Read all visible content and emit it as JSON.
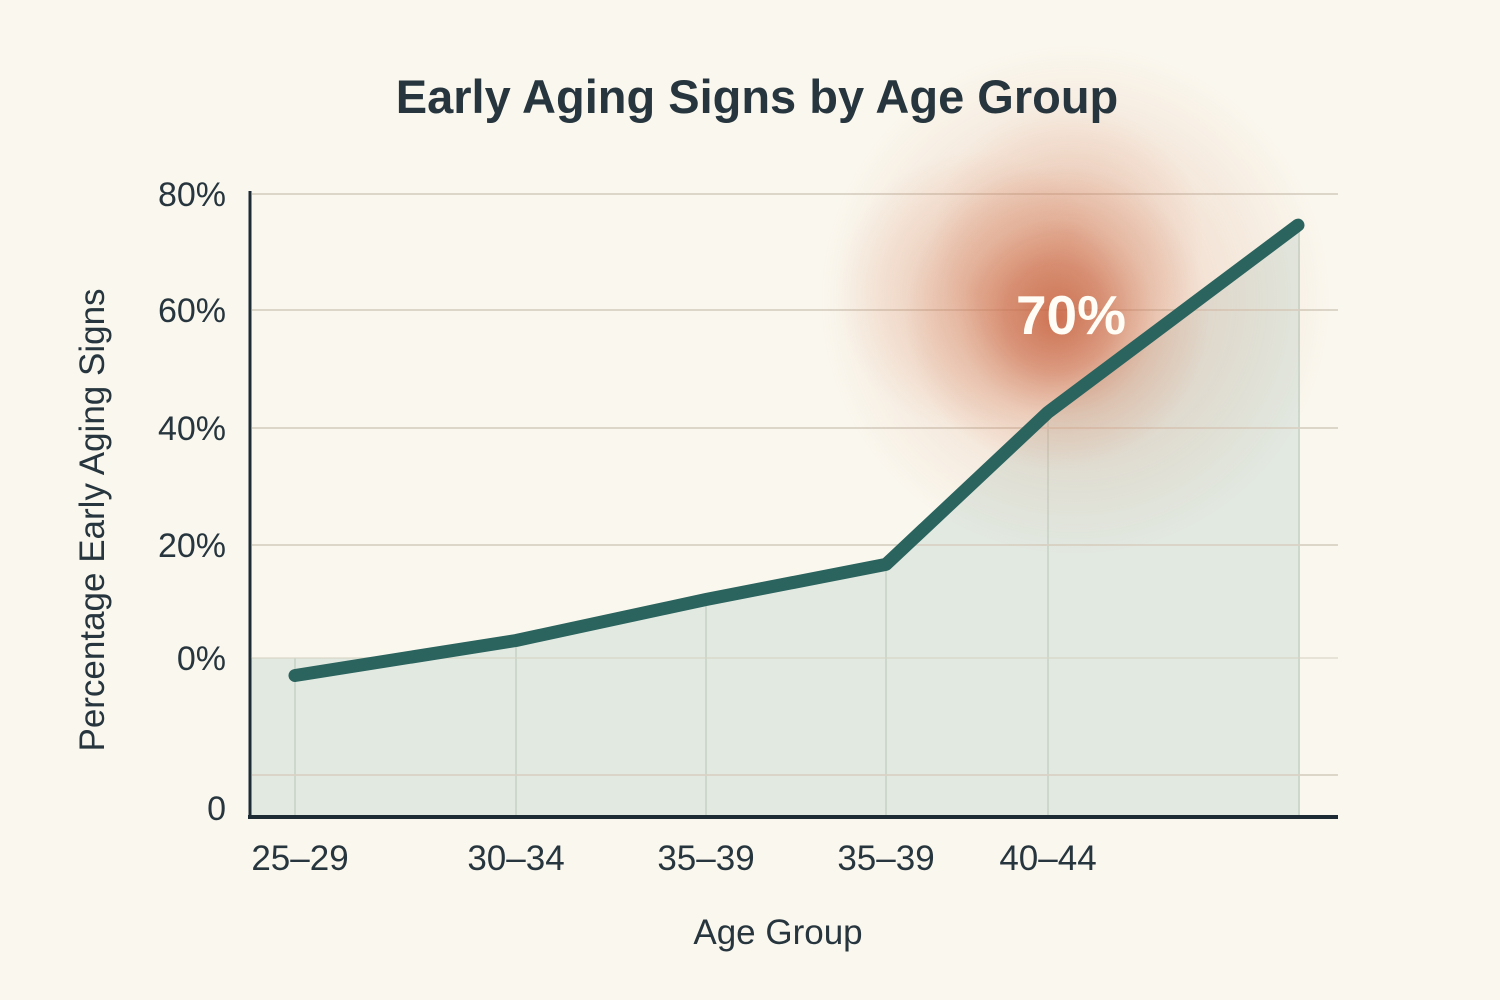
{
  "chart_data": {
    "type": "area",
    "title": "Early Aging Signs by Age Group",
    "xlabel": "Age Group",
    "ylabel": "Percentage Early Aging Signs",
    "categories": [
      "25–29",
      "30–34",
      "35–39",
      "35–39",
      "40–44",
      ""
    ],
    "values": [
      -3,
      3,
      10,
      16,
      42,
      74
    ],
    "y_ticks": [
      "80%",
      "60%",
      "40%",
      "20%",
      "0%"
    ],
    "origin_tick": "0",
    "annotation": {
      "label": "70%"
    },
    "ylim": [
      -27,
      80
    ],
    "grid": true,
    "legend": "none",
    "colors": {
      "background": "#faf7ee",
      "area": "#e2e9e1",
      "line": "#2b635e",
      "grid": "#d8d2c4",
      "grid_vertical": "#c9d4c9",
      "axis": "#1d2b35",
      "text": "#27363e",
      "annotation_text": "#fffdf5",
      "glow": "#c65d3a"
    }
  }
}
